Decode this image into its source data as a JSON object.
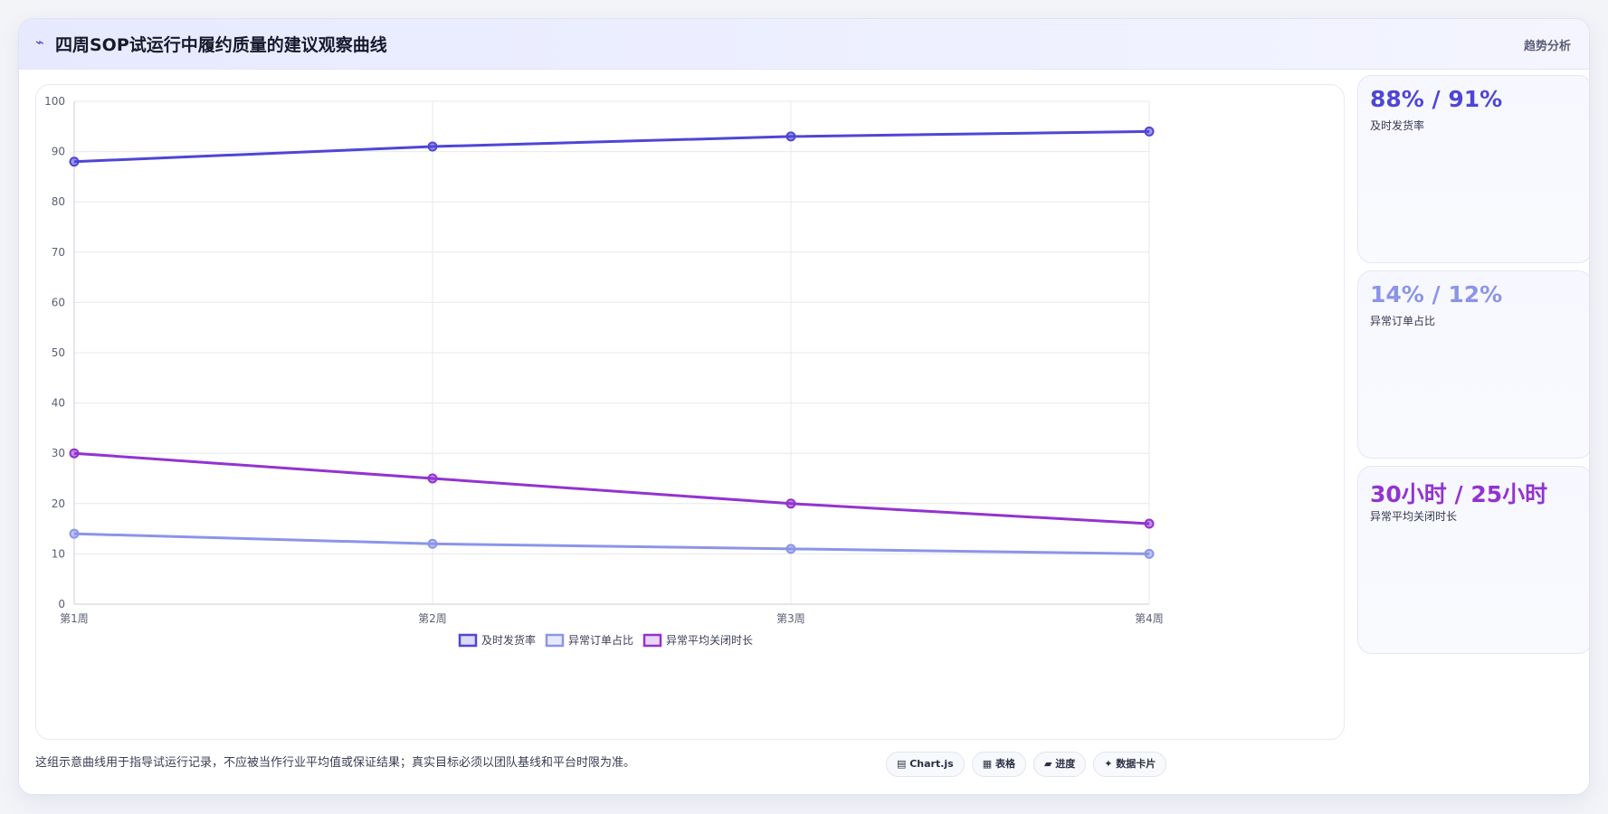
{
  "header": {
    "icon": "chart-line-icon",
    "title": "四周SOP试运行中履约质量的建议观察曲线",
    "tag": "趋势分析"
  },
  "colors": {
    "s1": "#4f46d6",
    "s2": "#8b95e8",
    "s3": "#9333d0"
  },
  "chart_data": {
    "type": "line",
    "categories": [
      "第1周",
      "第2周",
      "第3周",
      "第4周"
    ],
    "ylim": [
      0,
      100
    ],
    "yticks": [
      0,
      10,
      20,
      30,
      40,
      50,
      60,
      70,
      80,
      90,
      100
    ],
    "grid": true,
    "legend": "bottom",
    "series": [
      {
        "name": "及时发货率",
        "values": [
          88,
          91,
          93,
          94
        ]
      },
      {
        "name": "异常订单占比",
        "values": [
          14,
          12,
          11,
          10
        ]
      },
      {
        "name": "异常平均关闭时长",
        "values": [
          30,
          25,
          20,
          16
        ]
      }
    ]
  },
  "stats": [
    {
      "value": "88% / 91%",
      "label": "及时发货率"
    },
    {
      "value": "14% / 12%",
      "label": "异常订单占比"
    },
    {
      "value": "30小时 / 25小时",
      "label": "异常平均关闭时长"
    }
  ],
  "footer": {
    "note": "这组示意曲线用于指导试运行记录，不应被当作行业平均值或保证结果；真实目标必须以团队基线和平台时限为准。",
    "chips": [
      "▤ Chart.js",
      "▦ 表格",
      "▰ 进度",
      "✦ 数据卡片"
    ]
  }
}
